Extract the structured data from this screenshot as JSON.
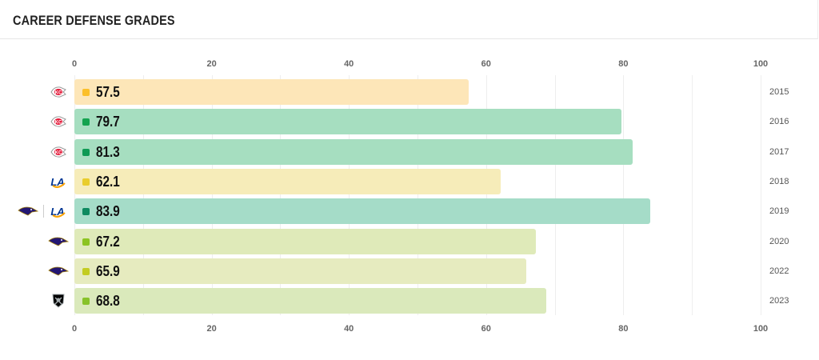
{
  "header": {
    "title": "CAREER DEFENSE GRADES"
  },
  "chart_data": {
    "type": "bar",
    "orientation": "horizontal",
    "title": "CAREER DEFENSE GRADES",
    "categories": [
      "2015",
      "2016",
      "2017",
      "2018",
      "2019",
      "2020",
      "2022",
      "2023"
    ],
    "values": [
      57.5,
      79.7,
      81.3,
      62.1,
      83.9,
      67.2,
      65.9,
      68.8
    ],
    "labels": [
      "57.5",
      "79.7",
      "81.3",
      "62.1",
      "83.9",
      "67.2",
      "65.9",
      "68.8"
    ],
    "teams": [
      [
        "chiefs"
      ],
      [
        "chiefs"
      ],
      [
        "chiefs"
      ],
      [
        "rams"
      ],
      [
        "ravens",
        "rams"
      ],
      [
        "ravens"
      ],
      [
        "ravens"
      ],
      [
        "raiders"
      ]
    ],
    "bar_colors": [
      "#fde6b8",
      "#a6dec0",
      "#a6dec0",
      "#f6ecb9",
      "#a5dcc8",
      "#dfeab9",
      "#e6ebbf",
      "#dae9bb"
    ],
    "dot_colors": [
      "#fbbf2a",
      "#14a350",
      "#0f9a55",
      "#e9cd2c",
      "#0e8a60",
      "#8cc421",
      "#c3cc22",
      "#87c22a"
    ],
    "ticks": [
      "0",
      "20",
      "40",
      "60",
      "80",
      "100"
    ],
    "xlim": [
      0,
      100
    ],
    "grid": true
  }
}
